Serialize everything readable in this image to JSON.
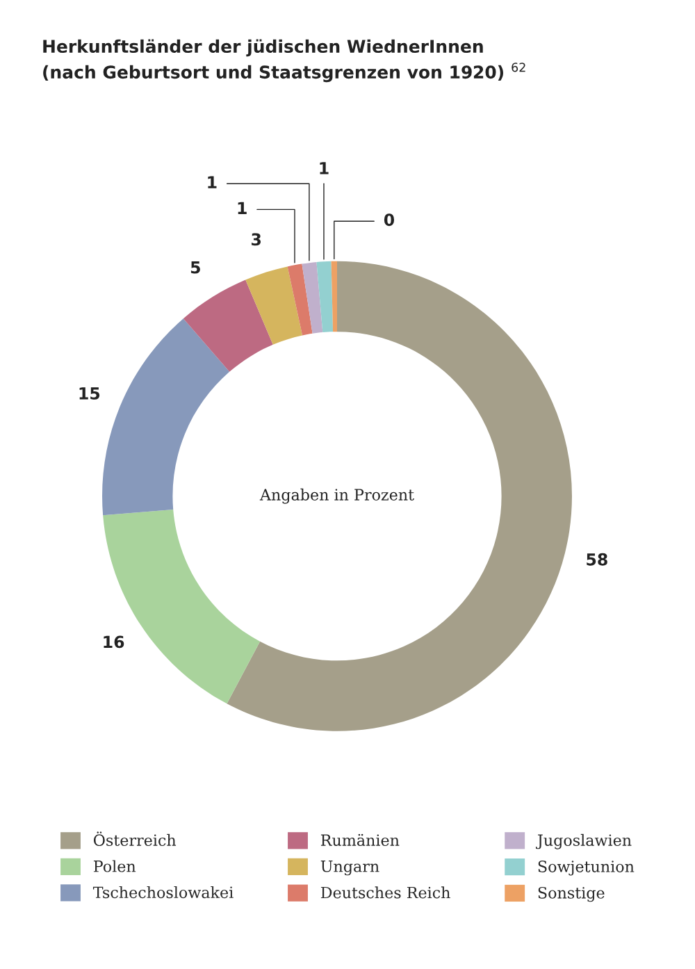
{
  "chart_data": {
    "type": "donut",
    "title": "Herkunftsländer der jüdischen WiednerInnen\n(nach Geburtsort und Staatsgrenzen von 1920) $^{62}$",
    "categories": [
      "Österreich",
      "Polen",
      "Tschechoslowakei",
      "Rumänien",
      "Ungarn",
      "Deutsches Reich",
      "Jugoslawien",
      "Sowjetunion",
      "Sonstige"
    ],
    "values": [
      58,
      16,
      15,
      5,
      3,
      1,
      1,
      1,
      0.4
    ],
    "value_labels": [
      "58",
      "16",
      "15",
      "5",
      "3",
      "1",
      "1",
      "1",
      "0"
    ],
    "colors": [
      "#a59f8a",
      "#a9d39c",
      "#8799bb",
      "#bd6a82",
      "#d5b55e",
      "#dc7b6a",
      "#c0b0cc",
      "#93d0d0",
      "#eda164"
    ],
    "annotations": [
      "Angaben in Prozent"
    ],
    "legend": "bottom"
  }
}
